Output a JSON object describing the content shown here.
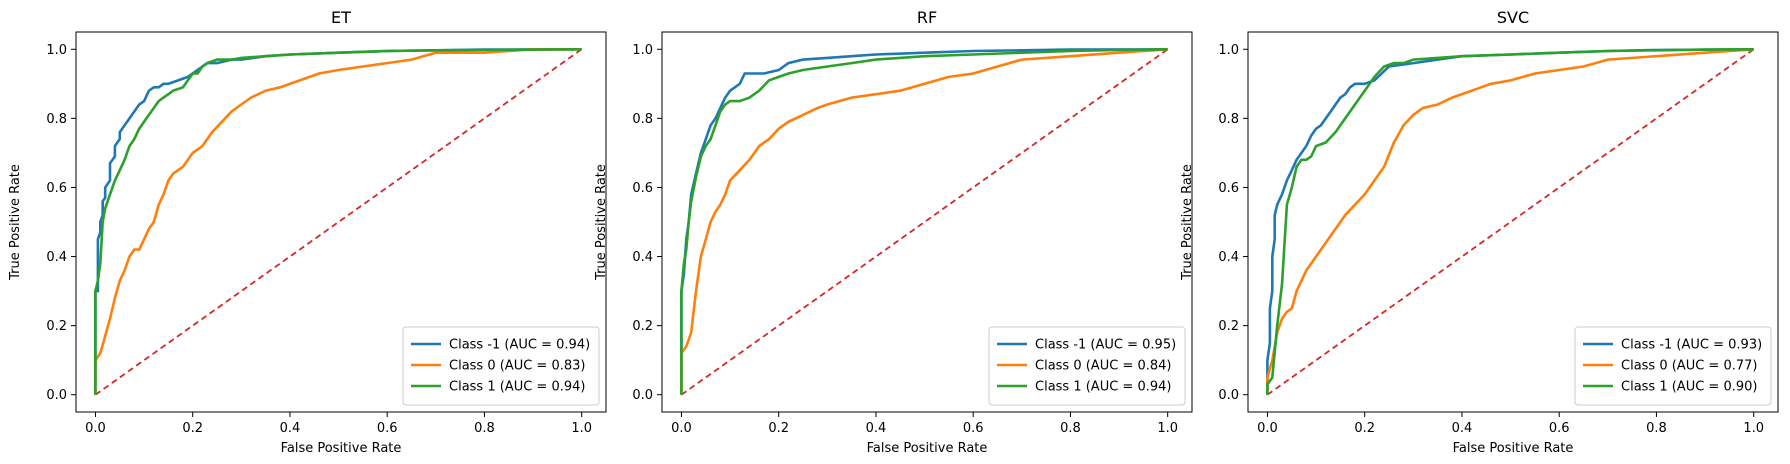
{
  "chart_data": [
    {
      "type": "line",
      "title": "ET",
      "xlabel": "False Positive Rate",
      "ylabel": "True Positive Rate",
      "xlim": [
        -0.04,
        1.05
      ],
      "ylim": [
        -0.05,
        1.05
      ],
      "xticks": [
        "0.0",
        "0.2",
        "0.4",
        "0.6",
        "0.8",
        "1.0"
      ],
      "yticks": [
        "0.0",
        "0.2",
        "0.4",
        "0.6",
        "0.8",
        "1.0"
      ],
      "grid": false,
      "legend_position": "lower right",
      "diagonal": {
        "color": "#d62728",
        "style": "dashed",
        "x": [
          0,
          1
        ],
        "y": [
          0,
          1
        ]
      },
      "series": [
        {
          "name": "Class -1 (AUC = 0.94)",
          "color": "#1f77b4",
          "x": [
            0,
            0,
            0.005,
            0.005,
            0.01,
            0.01,
            0.015,
            0.015,
            0.02,
            0.02,
            0.03,
            0.03,
            0.04,
            0.04,
            0.05,
            0.05,
            0.06,
            0.07,
            0.08,
            0.09,
            0.1,
            0.11,
            0.12,
            0.13,
            0.14,
            0.15,
            0.17,
            0.19,
            0.21,
            0.22,
            0.23,
            0.25,
            0.28,
            0.3,
            0.35,
            0.4,
            0.5,
            0.6,
            0.7,
            0.8,
            1.0
          ],
          "y": [
            0,
            0.3,
            0.3,
            0.45,
            0.47,
            0.5,
            0.52,
            0.56,
            0.57,
            0.6,
            0.62,
            0.67,
            0.69,
            0.72,
            0.74,
            0.76,
            0.78,
            0.8,
            0.82,
            0.84,
            0.85,
            0.88,
            0.89,
            0.89,
            0.9,
            0.9,
            0.91,
            0.92,
            0.94,
            0.95,
            0.96,
            0.96,
            0.97,
            0.97,
            0.98,
            0.985,
            0.99,
            0.995,
            0.997,
            0.999,
            1.0
          ]
        },
        {
          "name": "Class 0 (AUC = 0.83)",
          "color": "#ff7f0e",
          "x": [
            0,
            0,
            0.01,
            0.02,
            0.03,
            0.04,
            0.05,
            0.06,
            0.07,
            0.08,
            0.09,
            0.1,
            0.11,
            0.12,
            0.13,
            0.14,
            0.15,
            0.16,
            0.18,
            0.2,
            0.22,
            0.24,
            0.26,
            0.28,
            0.3,
            0.32,
            0.35,
            0.38,
            0.42,
            0.46,
            0.5,
            0.55,
            0.6,
            0.65,
            0.7,
            0.75,
            0.8,
            0.9,
            1.0
          ],
          "y": [
            0,
            0.1,
            0.12,
            0.17,
            0.22,
            0.28,
            0.33,
            0.36,
            0.4,
            0.42,
            0.42,
            0.45,
            0.48,
            0.5,
            0.55,
            0.58,
            0.62,
            0.64,
            0.66,
            0.7,
            0.72,
            0.76,
            0.79,
            0.82,
            0.84,
            0.86,
            0.88,
            0.89,
            0.91,
            0.93,
            0.94,
            0.95,
            0.96,
            0.97,
            0.99,
            0.99,
            0.99,
            1.0,
            1.0
          ]
        },
        {
          "name": "Class 1 (AUC = 0.94)",
          "color": "#2ca02c",
          "x": [
            0,
            0,
            0.005,
            0.01,
            0.015,
            0.02,
            0.03,
            0.04,
            0.05,
            0.06,
            0.07,
            0.08,
            0.09,
            0.1,
            0.11,
            0.12,
            0.13,
            0.14,
            0.15,
            0.16,
            0.18,
            0.2,
            0.21,
            0.22,
            0.23,
            0.25,
            0.28,
            0.3,
            0.35,
            0.4,
            0.5,
            0.6,
            0.7,
            0.8,
            0.9,
            1.0
          ],
          "y": [
            0,
            0.3,
            0.33,
            0.38,
            0.5,
            0.54,
            0.58,
            0.62,
            0.65,
            0.68,
            0.72,
            0.74,
            0.77,
            0.79,
            0.81,
            0.83,
            0.85,
            0.86,
            0.87,
            0.88,
            0.89,
            0.93,
            0.93,
            0.95,
            0.96,
            0.97,
            0.97,
            0.975,
            0.98,
            0.985,
            0.99,
            0.995,
            0.997,
            0.998,
            0.999,
            1.0
          ]
        }
      ]
    },
    {
      "type": "line",
      "title": "RF",
      "xlabel": "False Positive Rate",
      "ylabel": "True Positive Rate",
      "xlim": [
        -0.04,
        1.05
      ],
      "ylim": [
        -0.05,
        1.05
      ],
      "xticks": [
        "0.0",
        "0.2",
        "0.4",
        "0.6",
        "0.8",
        "1.0"
      ],
      "yticks": [
        "0.0",
        "0.2",
        "0.4",
        "0.6",
        "0.8",
        "1.0"
      ],
      "grid": false,
      "legend_position": "lower right",
      "diagonal": {
        "color": "#d62728",
        "style": "dashed",
        "x": [
          0,
          1
        ],
        "y": [
          0,
          1
        ]
      },
      "series": [
        {
          "name": "Class -1 (AUC = 0.95)",
          "color": "#1f77b4",
          "x": [
            0,
            0,
            0.005,
            0.01,
            0.015,
            0.02,
            0.03,
            0.04,
            0.05,
            0.06,
            0.07,
            0.08,
            0.09,
            0.1,
            0.11,
            0.12,
            0.13,
            0.15,
            0.17,
            0.2,
            0.22,
            0.25,
            0.3,
            0.35,
            0.4,
            0.5,
            0.6,
            0.7,
            0.8,
            1.0
          ],
          "y": [
            0,
            0.3,
            0.35,
            0.45,
            0.5,
            0.58,
            0.64,
            0.7,
            0.74,
            0.78,
            0.8,
            0.83,
            0.86,
            0.88,
            0.89,
            0.9,
            0.93,
            0.93,
            0.93,
            0.94,
            0.96,
            0.97,
            0.975,
            0.98,
            0.985,
            0.99,
            0.995,
            0.997,
            0.999,
            1.0
          ]
        },
        {
          "name": "Class 0 (AUC = 0.84)",
          "color": "#ff7f0e",
          "x": [
            0,
            0,
            0.01,
            0.02,
            0.03,
            0.04,
            0.05,
            0.06,
            0.07,
            0.08,
            0.09,
            0.1,
            0.12,
            0.14,
            0.16,
            0.18,
            0.2,
            0.22,
            0.25,
            0.28,
            0.3,
            0.35,
            0.4,
            0.45,
            0.5,
            0.55,
            0.6,
            0.65,
            0.7,
            0.8,
            0.9,
            1.0
          ],
          "y": [
            0,
            0.12,
            0.14,
            0.18,
            0.3,
            0.4,
            0.45,
            0.5,
            0.53,
            0.55,
            0.58,
            0.62,
            0.65,
            0.68,
            0.72,
            0.74,
            0.77,
            0.79,
            0.81,
            0.83,
            0.84,
            0.86,
            0.87,
            0.88,
            0.9,
            0.92,
            0.93,
            0.95,
            0.97,
            0.98,
            0.99,
            1.0
          ]
        },
        {
          "name": "Class 1 (AUC = 0.94)",
          "color": "#2ca02c",
          "x": [
            0,
            0,
            0.005,
            0.01,
            0.015,
            0.02,
            0.03,
            0.04,
            0.05,
            0.06,
            0.07,
            0.08,
            0.09,
            0.1,
            0.12,
            0.14,
            0.16,
            0.18,
            0.2,
            0.22,
            0.25,
            0.3,
            0.35,
            0.4,
            0.5,
            0.6,
            0.7,
            0.8,
            0.9,
            1.0
          ],
          "y": [
            0,
            0.3,
            0.38,
            0.42,
            0.5,
            0.56,
            0.63,
            0.69,
            0.72,
            0.74,
            0.78,
            0.82,
            0.84,
            0.85,
            0.85,
            0.86,
            0.88,
            0.91,
            0.92,
            0.93,
            0.94,
            0.95,
            0.96,
            0.97,
            0.98,
            0.985,
            0.99,
            0.995,
            0.998,
            1.0
          ]
        }
      ]
    },
    {
      "type": "line",
      "title": "SVC",
      "xlabel": "False Positive Rate",
      "ylabel": "True Positive Rate",
      "xlim": [
        -0.04,
        1.05
      ],
      "ylim": [
        -0.05,
        1.05
      ],
      "xticks": [
        "0.0",
        "0.2",
        "0.4",
        "0.6",
        "0.8",
        "1.0"
      ],
      "yticks": [
        "0.0",
        "0.2",
        "0.4",
        "0.6",
        "0.8",
        "1.0"
      ],
      "grid": false,
      "legend_position": "lower right",
      "diagonal": {
        "color": "#d62728",
        "style": "dashed",
        "x": [
          0,
          1
        ],
        "y": [
          0,
          1
        ]
      },
      "series": [
        {
          "name": "Class -1 (AUC = 0.93)",
          "color": "#1f77b4",
          "x": [
            0,
            0,
            0.005,
            0.005,
            0.01,
            0.01,
            0.015,
            0.015,
            0.02,
            0.03,
            0.04,
            0.05,
            0.06,
            0.07,
            0.08,
            0.09,
            0.1,
            0.11,
            0.12,
            0.13,
            0.14,
            0.15,
            0.16,
            0.17,
            0.18,
            0.2,
            0.22,
            0.25,
            0.3,
            0.35,
            0.4,
            0.5,
            0.6,
            0.7,
            0.8,
            1.0
          ],
          "y": [
            0,
            0.1,
            0.15,
            0.25,
            0.3,
            0.4,
            0.45,
            0.52,
            0.55,
            0.58,
            0.62,
            0.65,
            0.68,
            0.7,
            0.72,
            0.75,
            0.77,
            0.78,
            0.8,
            0.82,
            0.84,
            0.86,
            0.87,
            0.89,
            0.9,
            0.9,
            0.91,
            0.95,
            0.96,
            0.97,
            0.98,
            0.985,
            0.99,
            0.995,
            0.998,
            1.0
          ]
        },
        {
          "name": "Class 0 (AUC = 0.77)",
          "color": "#ff7f0e",
          "x": [
            0,
            0,
            0.01,
            0.02,
            0.03,
            0.04,
            0.05,
            0.06,
            0.07,
            0.08,
            0.09,
            0.1,
            0.11,
            0.12,
            0.13,
            0.14,
            0.15,
            0.16,
            0.18,
            0.2,
            0.22,
            0.24,
            0.26,
            0.28,
            0.3,
            0.32,
            0.35,
            0.38,
            0.42,
            0.46,
            0.5,
            0.55,
            0.6,
            0.65,
            0.7,
            0.8,
            0.9,
            1.0
          ],
          "y": [
            0,
            0.05,
            0.1,
            0.18,
            0.22,
            0.24,
            0.25,
            0.3,
            0.33,
            0.36,
            0.38,
            0.4,
            0.42,
            0.44,
            0.46,
            0.48,
            0.5,
            0.52,
            0.55,
            0.58,
            0.62,
            0.66,
            0.73,
            0.78,
            0.81,
            0.83,
            0.84,
            0.86,
            0.88,
            0.9,
            0.91,
            0.93,
            0.94,
            0.95,
            0.97,
            0.98,
            0.99,
            1.0
          ]
        },
        {
          "name": "Class 1 (AUC = 0.90)",
          "color": "#2ca02c",
          "x": [
            0,
            0,
            0.01,
            0.02,
            0.03,
            0.04,
            0.05,
            0.06,
            0.07,
            0.08,
            0.09,
            0.1,
            0.12,
            0.14,
            0.16,
            0.18,
            0.2,
            0.22,
            0.24,
            0.26,
            0.28,
            0.3,
            0.35,
            0.4,
            0.5,
            0.6,
            0.7,
            0.8,
            0.9,
            1.0
          ],
          "y": [
            0,
            0.03,
            0.05,
            0.2,
            0.32,
            0.55,
            0.6,
            0.66,
            0.68,
            0.68,
            0.69,
            0.72,
            0.73,
            0.76,
            0.8,
            0.84,
            0.88,
            0.92,
            0.95,
            0.96,
            0.96,
            0.97,
            0.975,
            0.98,
            0.985,
            0.99,
            0.995,
            0.997,
            0.999,
            1.0
          ]
        }
      ]
    }
  ]
}
